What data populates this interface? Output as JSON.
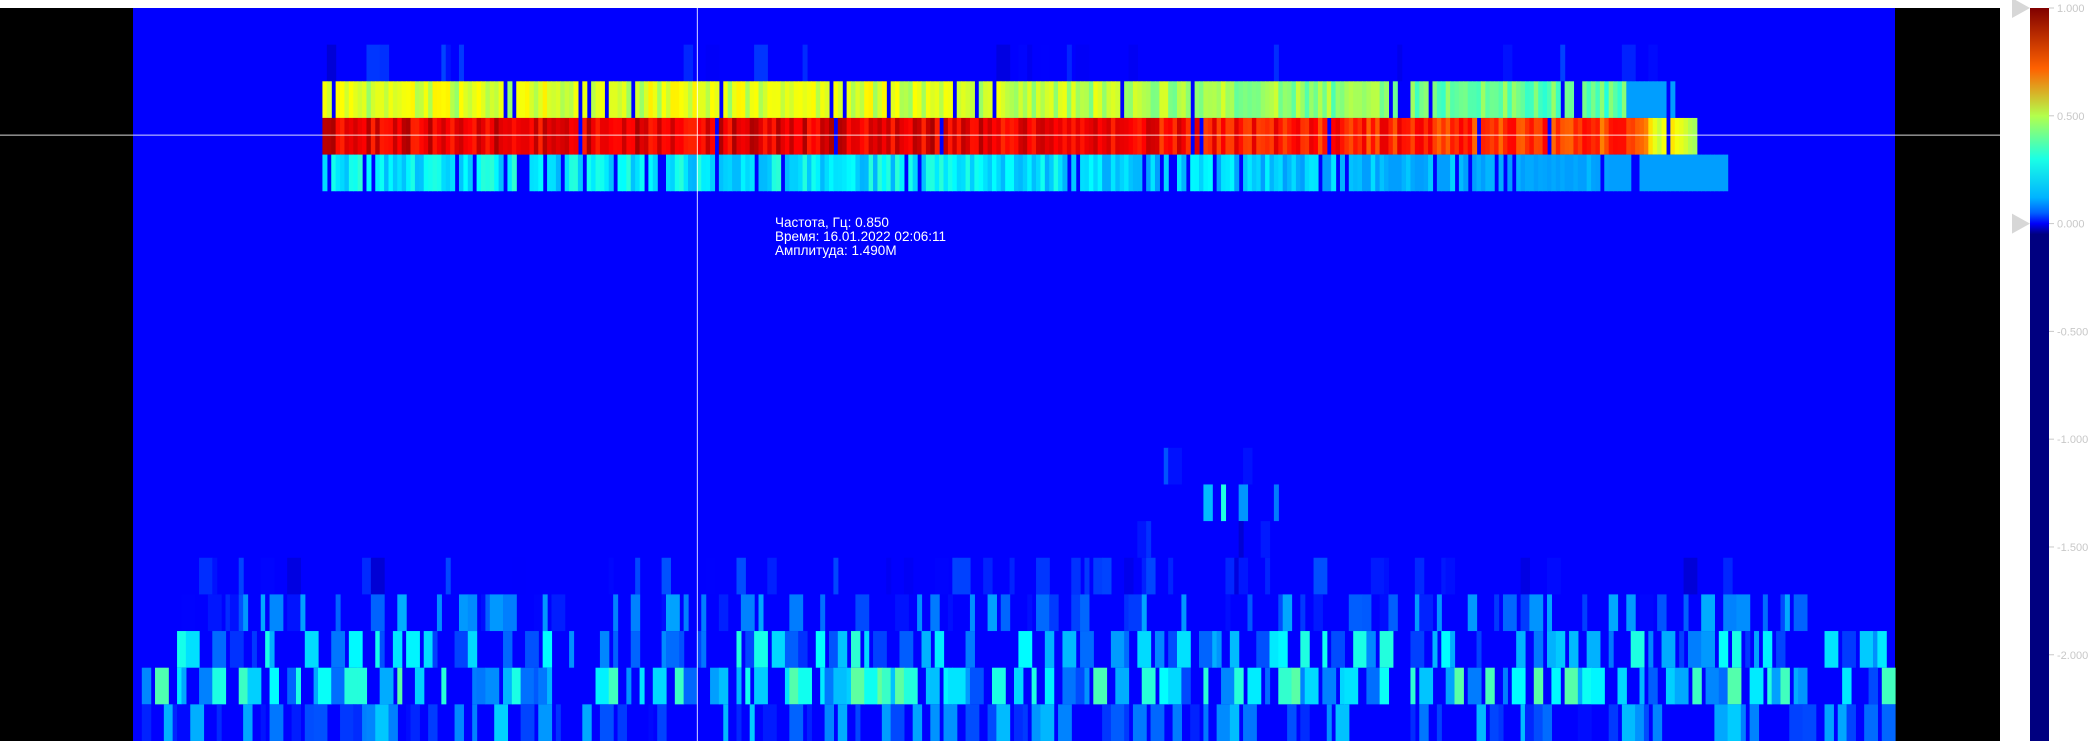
{
  "tooltip": {
    "freq": "Частота, Гц: 0.850",
    "time": "Время: 16.01.2022 02:06:11",
    "amp": "Амплитуда: 1.490M"
  },
  "colors": {
    "background": "#000000",
    "base": "#0000ff",
    "panel": "#ffffff",
    "crosshair": "#ffffff",
    "scale_labels": "#c8c8c8",
    "scale_markers": "#d7d7d7"
  },
  "chart_data": {
    "type": "heatmap",
    "colormap": "jet (blue-cyan-green-yellow-red)",
    "colorbar": {
      "orientation": "vertical",
      "position": "right",
      "scale": "log10 of amplitude",
      "range": [
        -2.4,
        1.0
      ],
      "ticks": [
        {
          "value": 1.0,
          "label": "1.000"
        },
        {
          "value": 0.5,
          "label": "0.500"
        },
        {
          "value": 0.0,
          "label": "0.000"
        },
        {
          "value": -0.5,
          "label": "-0.500"
        },
        {
          "value": -1.0,
          "label": "-1.000"
        },
        {
          "value": -1.5,
          "label": "-1.500"
        },
        {
          "value": -2.0,
          "label": "-2.000"
        }
      ],
      "range_markers": [
        1.0,
        0.0
      ]
    },
    "grid": false,
    "rows": 20,
    "columns": 400,
    "time_extent_columns": [
      27,
      400
    ],
    "bands": [
      {
        "row": 1,
        "c0": 44,
        "c1": 345,
        "level": 0.14,
        "p": 0.1
      },
      {
        "row": 2,
        "c0": 43,
        "c1": 350,
        "level": 0.58,
        "p": 0.92
      },
      {
        "row": 3,
        "c0": 43,
        "c1": 355,
        "level": 0.9,
        "p": 0.97
      },
      {
        "row": 4,
        "c0": 43,
        "c1": 362,
        "level": 0.36,
        "p": 0.85
      },
      {
        "row": 12,
        "c0": 233,
        "c1": 260,
        "level": 0.18,
        "p": 0.08
      },
      {
        "row": 13,
        "c0": 233,
        "c1": 265,
        "level": 0.28,
        "p": 0.12
      },
      {
        "row": 14,
        "c0": 220,
        "c1": 275,
        "level": 0.12,
        "p": 0.08
      },
      {
        "row": 15,
        "c0": 10,
        "c1": 370,
        "level": 0.14,
        "p": 0.14
      },
      {
        "row": 16,
        "c0": 10,
        "c1": 380,
        "level": 0.2,
        "p": 0.22
      },
      {
        "row": 17,
        "c0": 8,
        "c1": 398,
        "level": 0.28,
        "p": 0.34
      },
      {
        "row": 18,
        "c0": 0,
        "c1": 398,
        "level": 0.32,
        "p": 0.45
      },
      {
        "row": 19,
        "c0": 0,
        "c1": 400,
        "level": 0.22,
        "p": 0.3
      }
    ],
    "marker": {
      "row": 3,
      "time_column": 128
    }
  }
}
